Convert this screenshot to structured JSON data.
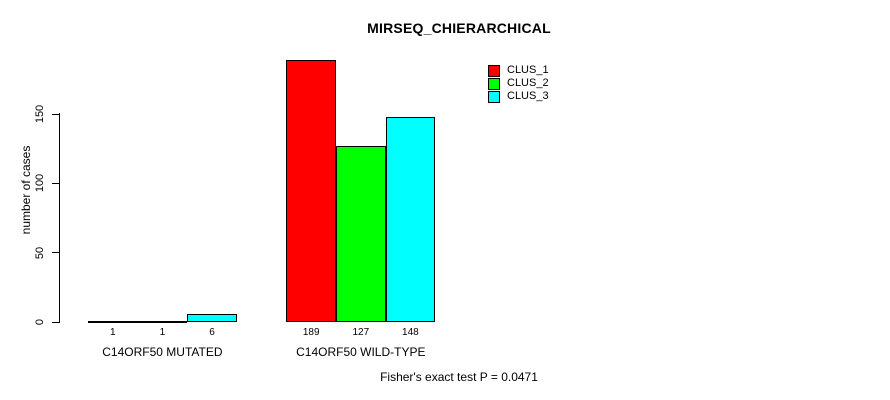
{
  "chart_data": {
    "type": "bar",
    "title": "MIRSEQ_CHIERARCHICAL",
    "ylabel": "number of cases",
    "xlabel": "",
    "categories": [
      "C14ORF50 MUTATED",
      "C14ORF50 WILD-TYPE"
    ],
    "series": [
      {
        "name": "CLUS_1",
        "color": "#ff0000",
        "values": [
          1,
          189
        ]
      },
      {
        "name": "CLUS_2",
        "color": "#00ff00",
        "values": [
          1,
          127
        ]
      },
      {
        "name": "CLUS_3",
        "color": "#00ffff",
        "values": [
          6,
          148
        ]
      }
    ],
    "yticks": [
      0,
      50,
      100,
      150
    ],
    "ylim": [
      0,
      150
    ],
    "grid": false,
    "legend_position": "top-right",
    "bar_border_color": "#000000",
    "background_color": "#ffffff",
    "annotation": "Fisher's exact test P = 0.0471"
  }
}
